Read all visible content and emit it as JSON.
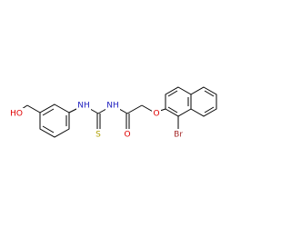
{
  "atoms": [
    {
      "label": "HO"
    },
    {
      "label": "NH"
    },
    {
      "label": "NH"
    },
    {
      "label": "S"
    },
    {
      "label": "O"
    },
    {
      "label": "O"
    },
    {
      "label": "Br"
    }
  ]
}
